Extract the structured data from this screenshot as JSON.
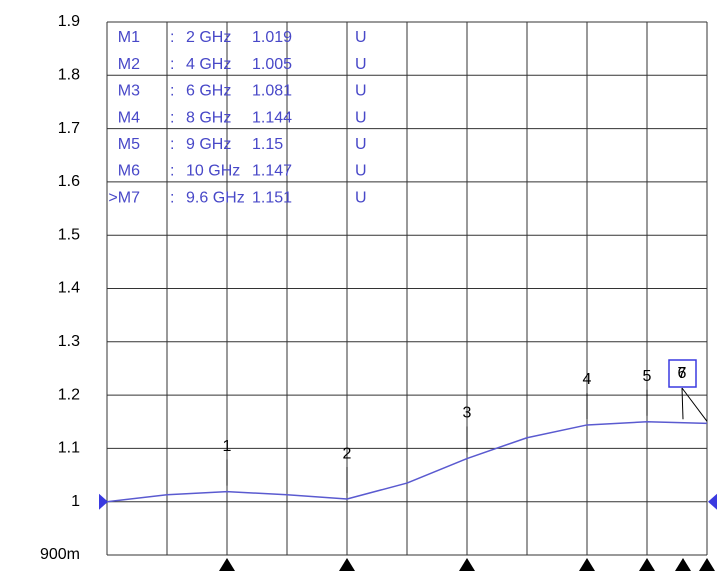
{
  "chart_data": {
    "type": "line",
    "x": [
      0,
      1,
      2,
      3,
      4,
      5,
      6,
      7,
      8,
      9,
      10
    ],
    "series": [
      {
        "color": "#5a5ad0",
        "values": [
          1.0,
          1.013,
          1.019,
          1.013,
          1.005,
          1.035,
          1.081,
          1.12,
          1.144,
          1.15,
          1.147
        ]
      }
    ],
    "xlim": [
      0,
      10
    ],
    "xticks": [
      0,
      1,
      2,
      3,
      4,
      5,
      6,
      7,
      8,
      9,
      10
    ],
    "ylim": [
      0.9,
      1.9
    ],
    "yticks": [
      {
        "value": 0.9,
        "label": "900m"
      },
      1,
      1.1,
      1.2,
      1.3,
      1.4,
      1.5,
      1.6,
      1.7,
      1.8,
      1.9
    ],
    "grid": true,
    "reference_level": 1,
    "markers": [
      {
        "name": "M1",
        "plot_label": "1",
        "x": 2,
        "x_label": "2 GHz",
        "value": 1.019,
        "unit": "U"
      },
      {
        "name": "M2",
        "plot_label": "2",
        "x": 4,
        "x_label": "4 GHz",
        "value": 1.005,
        "unit": "U"
      },
      {
        "name": "M3",
        "plot_label": "3",
        "x": 6,
        "x_label": "6 GHz",
        "value": 1.081,
        "unit": "U"
      },
      {
        "name": "M4",
        "plot_label": "4",
        "x": 8,
        "x_label": "8 GHz",
        "value": 1.144,
        "unit": "U"
      },
      {
        "name": "M5",
        "plot_label": "5",
        "x": 9,
        "x_label": "9 GHz",
        "value": 1.15,
        "unit": "U"
      },
      {
        "name": "M6",
        "plot_label": "6",
        "x": 10,
        "x_label": "10 GHz",
        "value": 1.147,
        "unit": "U"
      },
      {
        "name": ">M7",
        "plot_label": "7",
        "x": 9.6,
        "x_label": "9.6 GHz",
        "value": 1.151,
        "unit": "U"
      }
    ]
  }
}
